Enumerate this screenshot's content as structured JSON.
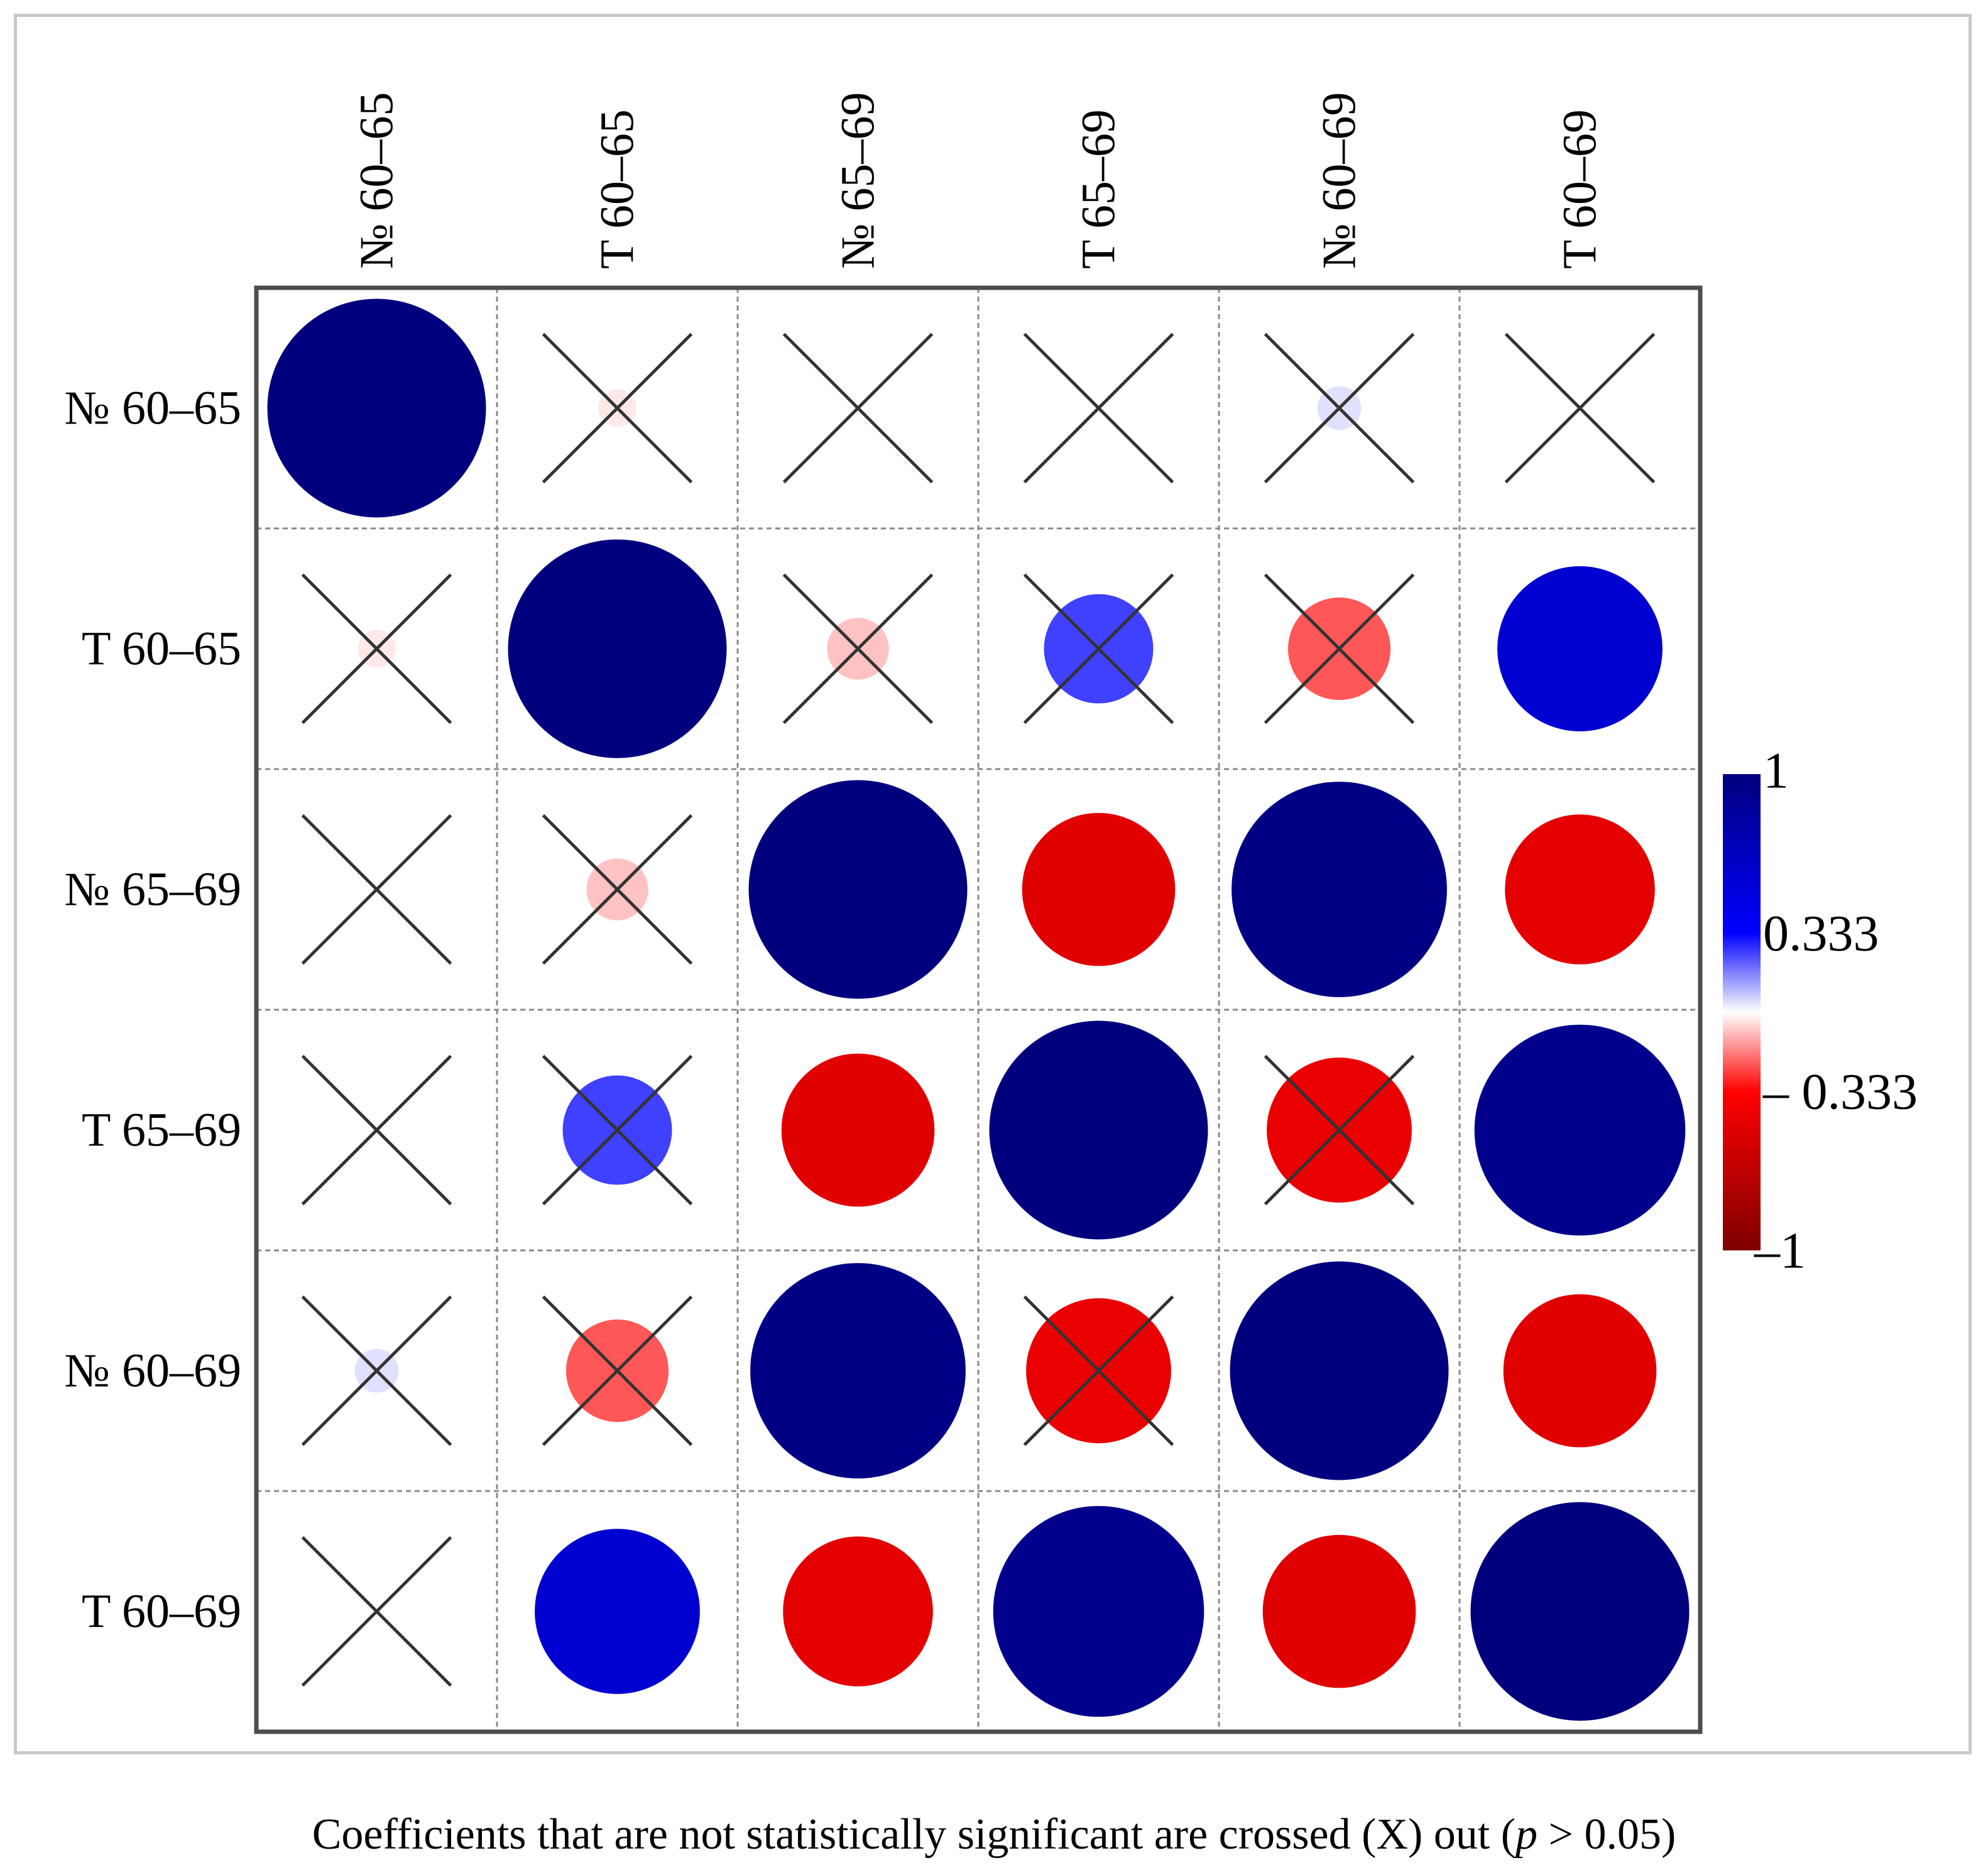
{
  "chart_data": {
    "type": "heatmap",
    "variant": "correlation-circle-matrix",
    "row_labels": [
      "№ 60–65",
      "T 60–65",
      "№ 65–69",
      "T 65–69",
      "№ 60–69",
      "T 60–69"
    ],
    "col_labels": [
      "№ 60–65",
      "T 60–65",
      "№ 65–69",
      "T 65–69",
      "№ 60–69",
      "T 60–69"
    ],
    "values": [
      [
        1.0,
        -0.03,
        0.0,
        0.0,
        0.04,
        0.0
      ],
      [
        -0.03,
        1.0,
        -0.08,
        0.25,
        -0.22,
        0.57
      ],
      [
        0.0,
        -0.08,
        1.0,
        -0.49,
        0.97,
        -0.47
      ],
      [
        0.0,
        0.25,
        -0.49,
        1.0,
        -0.44,
        0.93
      ],
      [
        0.04,
        -0.22,
        0.97,
        -0.44,
        1.0,
        -0.49
      ],
      [
        0.0,
        0.57,
        -0.47,
        0.93,
        -0.49,
        1.0
      ]
    ],
    "not_significant": [
      [
        false,
        true,
        true,
        true,
        true,
        true
      ],
      [
        true,
        false,
        true,
        true,
        true,
        false
      ],
      [
        true,
        true,
        false,
        false,
        false,
        false
      ],
      [
        true,
        true,
        false,
        false,
        true,
        false
      ],
      [
        true,
        true,
        false,
        true,
        false,
        false
      ],
      [
        true,
        false,
        false,
        false,
        false,
        false
      ]
    ],
    "colorbar": {
      "range": [
        -1,
        1
      ],
      "tick_labels": [
        "1",
        "0.333",
        "– 0.333",
        "–1"
      ],
      "tick_values": [
        1,
        0.333,
        -0.333,
        -1
      ],
      "colors": {
        "max": "#00007e",
        "strong_positive": "#0000ff",
        "zero": "#ffffff",
        "strong_negative": "#ff0000",
        "min": "#7e0000"
      }
    },
    "grid": "dashed",
    "legend": "right"
  },
  "caption": {
    "before": "Coefficients that are not statistically significant are crossed (X) out (",
    "p": "p",
    "after": " > 0.05)"
  }
}
